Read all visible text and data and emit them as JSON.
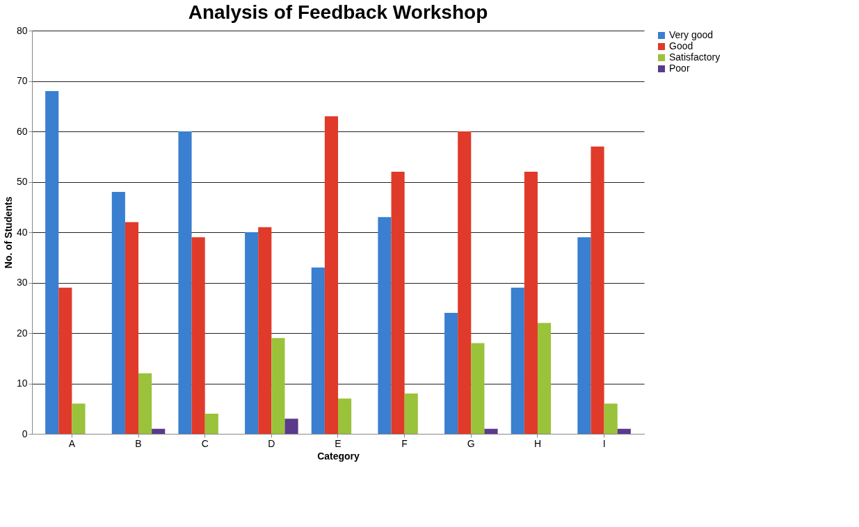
{
  "chart_data": {
    "type": "bar",
    "title": "Analysis of Feedback Workshop",
    "xlabel": "Category",
    "ylabel": "No. of Students",
    "categories": [
      "A",
      "B",
      "C",
      "D",
      "E",
      "F",
      "G",
      "H",
      "I"
    ],
    "series": [
      {
        "name": "Very good",
        "color": "#3a7fd0",
        "values": [
          68,
          48,
          60,
          40,
          33,
          43,
          24,
          29,
          39
        ]
      },
      {
        "name": "Good",
        "color": "#e03a2a",
        "values": [
          29,
          42,
          39,
          41,
          63,
          52,
          60,
          52,
          57
        ]
      },
      {
        "name": "Satisfactory",
        "color": "#9ac23a",
        "values": [
          6,
          12,
          4,
          19,
          7,
          8,
          18,
          22,
          6
        ]
      },
      {
        "name": "Poor",
        "color": "#5a3a8a",
        "values": [
          0,
          1,
          0,
          3,
          0,
          0,
          1,
          0,
          1
        ]
      }
    ],
    "ylim": [
      0,
      80
    ],
    "yticks": [
      0,
      10,
      20,
      30,
      40,
      50,
      60,
      70,
      80
    ],
    "grid": "y",
    "legend": "right"
  }
}
